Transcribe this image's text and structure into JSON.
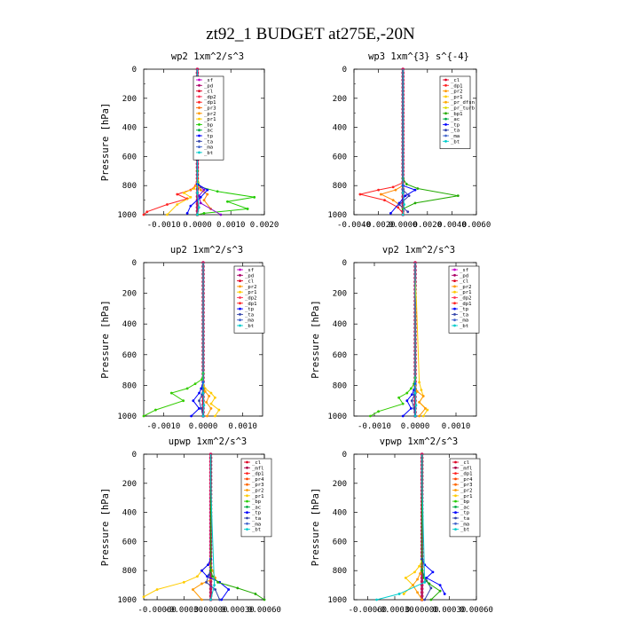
{
  "figure_title": "zt92_1  BUDGET at275E,-20N",
  "chart_data": [
    {
      "type": "line",
      "title": "wp2   1xm^2/s^3",
      "ylabel": "Pressure [hPa]",
      "ylim": [
        1000,
        0
      ],
      "yticks": [
        0,
        200,
        400,
        600,
        800,
        1000
      ],
      "xlim": [
        -0.0016,
        0.002
      ],
      "xticks": [
        -0.001,
        0.0,
        0.001,
        0.002
      ],
      "xtick_labels": [
        "-0.0010",
        "0.0000",
        "0.0010",
        "0.0020"
      ],
      "legend": [
        "_sf",
        "_pd",
        "_cl",
        "_dp2",
        "_dp1",
        "_pr3",
        "_pr2",
        "_pr1",
        "_bp",
        "_ac",
        "_tp",
        "_ta",
        "_ma",
        "_bt"
      ],
      "series": [
        {
          "name": "_bp",
          "color": "#22cc00",
          "x": [
            0,
            0,
            2e-05,
            0.0001,
            0.0006,
            0.0017,
            0.0009,
            0.0015,
            0.0002,
            0
          ],
          "y": [
            0,
            700,
            780,
            810,
            840,
            880,
            910,
            960,
            990,
            1000
          ]
        },
        {
          "name": "_pr1",
          "color": "#ff2222",
          "x": [
            0,
            0,
            -5e-05,
            -0.0002,
            -0.0006,
            -0.0003,
            -0.0009,
            -0.0015,
            -0.0016
          ],
          "y": [
            0,
            750,
            800,
            830,
            860,
            890,
            930,
            980,
            1000
          ]
        },
        {
          "name": "_pr2",
          "color": "#ffcc00",
          "x": [
            0,
            0,
            -0.0001,
            -0.0004,
            -0.0002,
            -0.0006,
            -0.0009
          ],
          "y": [
            0,
            780,
            820,
            850,
            880,
            930,
            1000
          ]
        },
        {
          "name": "_pr3",
          "color": "#ff8800",
          "x": [
            0,
            0,
            0.0001,
            0.0003,
            0.0002,
            0.0004
          ],
          "y": [
            0,
            800,
            830,
            860,
            900,
            960
          ]
        },
        {
          "name": "_dp1",
          "color": "#8800cc",
          "x": [
            0,
            0,
            0.0002,
            5e-05,
            0.0001,
            0.0007
          ],
          "y": [
            0,
            790,
            830,
            870,
            920,
            1000
          ]
        },
        {
          "name": "_ta",
          "color": "#0000ff",
          "x": [
            0,
            0,
            0.0003,
            0.0001,
            -0.0002,
            -0.0003
          ],
          "y": [
            0,
            790,
            830,
            880,
            940,
            990
          ]
        },
        {
          "name": "_bt",
          "color": "#00cccc",
          "x": [
            0,
            0,
            5e-05,
            0
          ],
          "y": [
            0,
            850,
            950,
            1000
          ]
        }
      ]
    },
    {
      "type": "line",
      "title": "wp3   1xm^{3} s^{-4}",
      "ylabel": "",
      "ylim": [
        1000,
        0
      ],
      "yticks": [
        0,
        200,
        400,
        600,
        800,
        1000
      ],
      "xlim": [
        -0.004,
        0.006
      ],
      "xticks": [
        -0.004,
        -0.002,
        0.0,
        0.002,
        0.004,
        0.006
      ],
      "xtick_labels": [
        "-0.0040",
        "-0.0020",
        "0.0000",
        "0.0020",
        "0.0040",
        "0.0060"
      ],
      "legend": [
        "_cl",
        "_dp1",
        "_pr2",
        "_pr1",
        "_pr_dfsn",
        "_pr_turb",
        "_bp1",
        "_ac",
        "_tp",
        "_ta",
        "_ma",
        "_bt"
      ],
      "series": [
        {
          "name": "_bp1",
          "color": "#22aa00",
          "x": [
            0,
            0,
            0.0003,
            0.0012,
            0.0045,
            0.001,
            0
          ],
          "y": [
            0,
            750,
            790,
            820,
            870,
            920,
            960
          ]
        },
        {
          "name": "_pr1",
          "color": "#ff2222",
          "x": [
            0,
            0,
            -0.0008,
            -0.002,
            -0.0035,
            -0.0015,
            -0.0004,
            0
          ],
          "y": [
            0,
            780,
            810,
            830,
            860,
            900,
            950,
            990
          ]
        },
        {
          "name": "_pr2",
          "color": "#ff8800",
          "x": [
            0,
            0,
            -0.0006,
            -0.0018,
            -0.0008,
            0
          ],
          "y": [
            0,
            800,
            830,
            860,
            900,
            950
          ]
        },
        {
          "name": "_tp",
          "color": "#0000ff",
          "x": [
            0,
            0,
            0.001,
            0.0002,
            -0.0003,
            -0.001
          ],
          "y": [
            0,
            800,
            830,
            870,
            920,
            990
          ]
        },
        {
          "name": "_ta",
          "color": "#3333aa",
          "x": [
            0,
            0,
            0.0005,
            -0.0003,
            0.0004
          ],
          "y": [
            0,
            830,
            870,
            930,
            980
          ]
        },
        {
          "name": "_bt",
          "color": "#00cccc",
          "x": [
            0,
            0,
            0.0001,
            0
          ],
          "y": [
            0,
            850,
            930,
            1000
          ]
        }
      ]
    },
    {
      "type": "line",
      "title": "up2   1xm^2/s^3",
      "ylabel": "Pressure [hPa]",
      "ylim": [
        1000,
        0
      ],
      "yticks": [
        0,
        200,
        400,
        600,
        800,
        1000
      ],
      "xlim": [
        -0.0015,
        0.0015
      ],
      "xticks": [
        -0.001,
        0.0,
        0.001
      ],
      "xtick_labels": [
        "-0.0010",
        "0.0000",
        "0.0010"
      ],
      "legend": [
        "_sf",
        "_pd",
        "_cl",
        "_pr2",
        "_pr1",
        "_dp2",
        "_dp1",
        "_tp",
        "_ta",
        "_ma",
        "_bt"
      ],
      "series": [
        {
          "name": "_dp1",
          "color": "#33cc00",
          "x": [
            0,
            0,
            -3e-05,
            -0.0002,
            -0.0004,
            -0.0008,
            -0.0005,
            -0.0012,
            -0.0015
          ],
          "y": [
            0,
            720,
            760,
            790,
            820,
            850,
            900,
            960,
            1000
          ]
        },
        {
          "name": "_pr1",
          "color": "#ffcc00",
          "x": [
            0,
            0,
            5e-05,
            0.0002,
            0.0003,
            0.0002,
            0.0004,
            0.0003
          ],
          "y": [
            0,
            780,
            820,
            850,
            880,
            920,
            960,
            1000
          ]
        },
        {
          "name": "_pr2",
          "color": "#ff9900",
          "x": [
            0,
            0,
            5e-05,
            0.00015,
            8e-05,
            0.0002,
            0.0001
          ],
          "y": [
            0,
            800,
            840,
            870,
            910,
            950,
            1000
          ]
        },
        {
          "name": "_tp",
          "color": "#0000ff",
          "x": [
            0,
            0,
            -5e-05,
            -0.0001,
            -0.00025,
            -0.0001,
            -0.0003
          ],
          "y": [
            0,
            780,
            820,
            850,
            900,
            950,
            1000
          ]
        },
        {
          "name": "_ta",
          "color": "#3344aa",
          "x": [
            0,
            0,
            -3e-05,
            -0.0001,
            -5e-05,
            0
          ],
          "y": [
            0,
            820,
            860,
            900,
            950,
            1000
          ]
        },
        {
          "name": "_bt",
          "color": "#00cccc",
          "x": [
            0,
            0,
            2e-05,
            0
          ],
          "y": [
            0,
            850,
            930,
            1000
          ]
        }
      ]
    },
    {
      "type": "line",
      "title": "vp2   1xm^2/s^3",
      "ylabel": "Pressure [hPa]",
      "ylim": [
        1000,
        0
      ],
      "yticks": [
        0,
        200,
        400,
        600,
        800,
        1000
      ],
      "xlim": [
        -0.0015,
        0.0015
      ],
      "xticks": [
        -0.001,
        0.0,
        0.001
      ],
      "xtick_labels": [
        "-0.0010",
        "0.0000",
        "0.0010"
      ],
      "legend": [
        "_sf",
        "_pd",
        "_cl",
        "_pr2",
        "_pr1",
        "_dp2",
        "_dp1",
        "_tp",
        "_ta",
        "_ma",
        "_bt"
      ],
      "series": [
        {
          "name": "_dp1",
          "color": "#33cc00",
          "x": [
            0,
            0,
            -3e-05,
            -0.0001,
            -0.0002,
            -0.0004,
            -0.0003,
            -0.0009,
            -0.0011
          ],
          "y": [
            0,
            750,
            790,
            820,
            850,
            880,
            920,
            970,
            1000
          ]
        },
        {
          "name": "_pr1",
          "color": "#ffcc00",
          "x": [
            0,
            0,
            3e-05,
            0.0001,
            0.00015,
            0.0002,
            0.0001,
            0.0003,
            0.0002
          ],
          "y": [
            0,
            100,
            250,
            780,
            830,
            870,
            910,
            960,
            1000
          ]
        },
        {
          "name": "_pr2",
          "color": "#ff9900",
          "x": [
            0,
            0,
            5e-05,
            0.0002,
            0.0001,
            0.00025,
            0.0001
          ],
          "y": [
            0,
            800,
            840,
            870,
            910,
            950,
            1000
          ]
        },
        {
          "name": "_tp",
          "color": "#0000ff",
          "x": [
            0,
            0,
            -3e-05,
            -8e-05,
            -0.0002,
            -0.0001,
            -0.0003
          ],
          "y": [
            0,
            790,
            830,
            860,
            900,
            950,
            1000
          ]
        },
        {
          "name": "_ta",
          "color": "#3344aa",
          "x": [
            0,
            0,
            -2e-05,
            -8e-05,
            -3e-05,
            0
          ],
          "y": [
            0,
            820,
            860,
            900,
            950,
            1000
          ]
        },
        {
          "name": "_bt",
          "color": "#00cccc",
          "x": [
            0,
            0,
            2e-05,
            0
          ],
          "y": [
            0,
            850,
            930,
            1000
          ]
        }
      ]
    },
    {
      "type": "line",
      "title": "upwp   1xm^2/s^3",
      "ylabel": "Pressure [hPa]",
      "ylim": [
        1000,
        0
      ],
      "yticks": [
        0,
        200,
        400,
        600,
        800,
        1000
      ],
      "xlim": [
        -0.00075,
        0.0006
      ],
      "xticks": [
        -0.0006,
        -0.0003,
        0.0,
        0.0003,
        0.0006
      ],
      "xtick_labels": [
        "-0.00060",
        "-0.00030",
        "0.00000",
        "0.00030",
        "0.00060"
      ],
      "legend": [
        "_cl",
        "_mfl",
        "_dp1",
        "_pr4",
        "_pr3",
        "_pr2",
        "_pr1",
        "_bp",
        "_ac",
        "_tp",
        "_ta",
        "_ma",
        "_bt"
      ],
      "series": [
        {
          "name": "_pr2",
          "color": "#ffcc00",
          "x": [
            0,
            0,
            -3e-05,
            -0.0001,
            -0.00015,
            -0.0003,
            -0.0006,
            -0.00075
          ],
          "y": [
            0,
            720,
            760,
            800,
            840,
            880,
            930,
            980
          ]
        },
        {
          "name": "_pr1",
          "color": "#ff9900",
          "x": [
            0,
            0,
            2e-05,
            5e-05,
            -0.0001,
            -0.0002,
            -0.0001
          ],
          "y": [
            0,
            770,
            800,
            850,
            890,
            930,
            1000
          ]
        },
        {
          "name": "_tp",
          "color": "#0000ff",
          "x": [
            0,
            0,
            -3e-05,
            -0.0001,
            -4e-05,
            0.0001,
            0.0002,
            0.00012
          ],
          "y": [
            0,
            720,
            760,
            800,
            840,
            880,
            930,
            1000
          ]
        },
        {
          "name": "_ta",
          "color": "#3344aa",
          "x": [
            0,
            0,
            -2e-05,
            -5e-05,
            5e-05,
            0.0001
          ],
          "y": [
            0,
            780,
            830,
            880,
            930,
            1000
          ]
        },
        {
          "name": "_bp",
          "color": "#22aa00",
          "x": [
            0,
            0,
            2e-05,
            8e-05,
            0.0003,
            0.0005,
            0.0006
          ],
          "y": [
            0,
            800,
            840,
            880,
            920,
            960,
            1000
          ]
        },
        {
          "name": "_bt",
          "color": "#00cccc",
          "x": [
            0,
            0,
            1e-05,
            4e-05,
            0
          ],
          "y": [
            0,
            200,
            400,
            900,
            1000
          ]
        }
      ]
    },
    {
      "type": "line",
      "title": "vpwp   1xm^2/s^3",
      "ylabel": "Pressure [hPa]",
      "ylim": [
        1000,
        0
      ],
      "yticks": [
        0,
        200,
        400,
        600,
        800,
        1000
      ],
      "xlim": [
        -0.00075,
        0.0006
      ],
      "xticks": [
        -0.0006,
        -0.0003,
        0.0,
        0.0003,
        0.0006
      ],
      "xtick_labels": [
        "-0.00060",
        "-0.00030",
        "0.00000",
        "0.00030",
        "0.00060"
      ],
      "legend": [
        "_cl",
        "_mfl",
        "_dp1",
        "_pr4",
        "_pr3",
        "_pr2",
        "_pr1",
        "_bp",
        "_ac",
        "_tp",
        "_ta",
        "_ma",
        "_bt"
      ],
      "series": [
        {
          "name": "_pr2",
          "color": "#ffcc00",
          "x": [
            0,
            0,
            -3e-05,
            -8e-05,
            -0.00018,
            -0.0001,
            -0.0002
          ],
          "y": [
            0,
            730,
            770,
            810,
            850,
            900,
            960
          ]
        },
        {
          "name": "_pr1",
          "color": "#ff9900",
          "x": [
            0,
            0,
            -2e-05,
            -5e-05,
            -0.0001,
            -5e-05,
            0
          ],
          "y": [
            0,
            780,
            820,
            860,
            900,
            950,
            1000
          ]
        },
        {
          "name": "_tp",
          "color": "#0000ff",
          "x": [
            0,
            0,
            3e-05,
            0.00012,
            5e-05,
            0.0002,
            0.00025
          ],
          "y": [
            0,
            720,
            760,
            810,
            850,
            900,
            960
          ]
        },
        {
          "name": "_ta",
          "color": "#3344aa",
          "x": [
            0,
            0,
            2e-05,
            5e-05,
            0.0001,
            3e-05
          ],
          "y": [
            0,
            790,
            830,
            870,
            920,
            1000
          ]
        },
        {
          "name": "_bp",
          "color": "#22aa00",
          "x": [
            0,
            0,
            2e-05,
            8e-05,
            0.0002,
            0.0001
          ],
          "y": [
            0,
            800,
            850,
            890,
            940,
            1000
          ]
        },
        {
          "name": "_bt",
          "color": "#00cccc",
          "x": [
            0,
            0,
            1e-05,
            3e-05,
            -0.00025,
            -0.0005
          ],
          "y": [
            0,
            200,
            400,
            880,
            960,
            1000
          ]
        }
      ]
    }
  ]
}
